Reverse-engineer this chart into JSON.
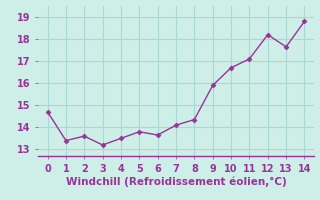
{
  "x": [
    0,
    1,
    2,
    3,
    4,
    5,
    6,
    7,
    8,
    9,
    10,
    11,
    12,
    13,
    14
  ],
  "y": [
    14.7,
    13.4,
    13.6,
    13.2,
    13.5,
    13.8,
    13.65,
    14.1,
    14.35,
    15.9,
    16.7,
    17.1,
    18.2,
    17.65,
    18.8
  ],
  "line_color": "#993399",
  "marker": "D",
  "marker_size": 2.5,
  "xlabel": "Windchill (Refroidissement éolien,°C)",
  "xlabel_fontsize": 7.5,
  "ylabel_ticks": [
    13,
    14,
    15,
    16,
    17,
    18,
    19
  ],
  "xlim": [
    -0.5,
    14.5
  ],
  "ylim": [
    12.7,
    19.5
  ],
  "bg_color": "#ceeee8",
  "grid_color": "#aad8d4",
  "tick_fontsize": 7,
  "tick_color": "#993399",
  "line_width": 1.0,
  "bottom_line_color": "#993399"
}
